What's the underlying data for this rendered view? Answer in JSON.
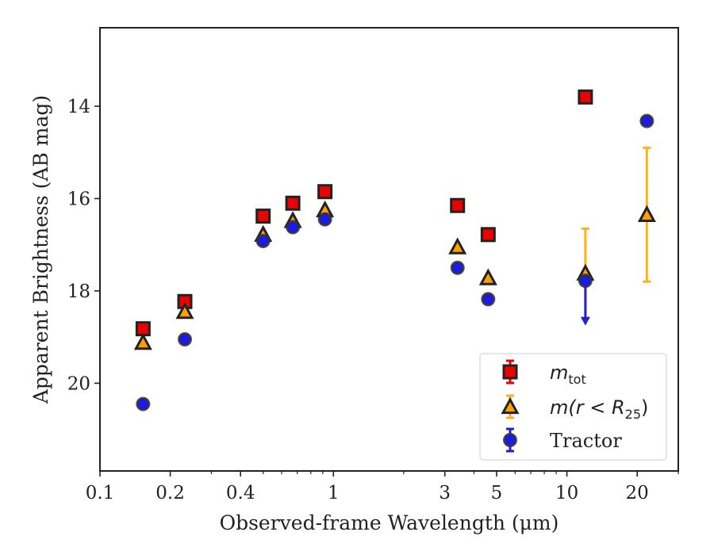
{
  "chart_data": {
    "type": "scatter",
    "xlabel": "Observed-frame Wavelength (μm)",
    "ylabel": "Apparent Brightness (AB mag)",
    "x_scale": "log",
    "xlim": [
      0.1,
      30
    ],
    "ylim": [
      21.9,
      12.3
    ],
    "y_inverted": true,
    "x_ticks": [
      {
        "value": 0.1,
        "label": "0.1"
      },
      {
        "value": 0.2,
        "label": "0.2"
      },
      {
        "value": 0.4,
        "label": "0.4"
      },
      {
        "value": 1,
        "label": "1"
      },
      {
        "value": 3,
        "label": "3"
      },
      {
        "value": 5,
        "label": "5"
      },
      {
        "value": 10,
        "label": "10"
      },
      {
        "value": 20,
        "label": "20"
      }
    ],
    "y_ticks": [
      {
        "value": 14,
        "label": "14"
      },
      {
        "value": 16,
        "label": "16"
      },
      {
        "value": 18,
        "label": "18"
      },
      {
        "value": 20,
        "label": "20"
      }
    ],
    "grid": false,
    "legend_position": "lower-right",
    "series": [
      {
        "key": "mtot",
        "legend_main": "m",
        "legend_sub": "tot",
        "legend_tail": "",
        "marker": "square",
        "color": "#ee0000",
        "errcolor": "#ee0000",
        "points": [
          {
            "x": 0.153,
            "y": 18.82
          },
          {
            "x": 0.231,
            "y": 18.23
          },
          {
            "x": 0.5,
            "y": 16.38
          },
          {
            "x": 0.67,
            "y": 16.1
          },
          {
            "x": 0.92,
            "y": 15.85
          },
          {
            "x": 3.4,
            "y": 16.15
          },
          {
            "x": 4.6,
            "y": 16.78
          },
          {
            "x": 12.0,
            "y": 13.8
          }
        ]
      },
      {
        "key": "mr25",
        "legend_main": "m(r < R",
        "legend_sub": "25",
        "legend_tail": ")",
        "marker": "triangle",
        "color": "#ff9f00",
        "errcolor": "#ffb01f",
        "points": [
          {
            "x": 0.153,
            "y": 19.12
          },
          {
            "x": 0.231,
            "y": 18.45
          },
          {
            "x": 0.5,
            "y": 16.78
          },
          {
            "x": 0.67,
            "y": 16.48
          },
          {
            "x": 0.92,
            "y": 16.25
          },
          {
            "x": 3.4,
            "y": 17.05
          },
          {
            "x": 4.6,
            "y": 17.72
          },
          {
            "x": 12.0,
            "y": 17.62,
            "err": [
              16.65,
              18.6
            ]
          },
          {
            "x": 22.0,
            "y": 16.35,
            "err": [
              14.9,
              17.8
            ]
          }
        ]
      },
      {
        "key": "tractor",
        "legend_main": "Tractor",
        "legend_sub": "",
        "legend_tail": "",
        "marker": "circle",
        "color": "#1a1aee",
        "errcolor": "#2222cc",
        "points": [
          {
            "x": 0.153,
            "y": 20.45
          },
          {
            "x": 0.231,
            "y": 19.05
          },
          {
            "x": 0.5,
            "y": 16.92
          },
          {
            "x": 0.67,
            "y": 16.62
          },
          {
            "x": 0.92,
            "y": 16.45
          },
          {
            "x": 3.4,
            "y": 17.5
          },
          {
            "x": 4.6,
            "y": 18.18
          },
          {
            "x": 12.0,
            "y": 17.78,
            "upper_limit": true,
            "limit_to": 18.7
          },
          {
            "x": 22.0,
            "y": 14.32
          }
        ]
      }
    ]
  }
}
